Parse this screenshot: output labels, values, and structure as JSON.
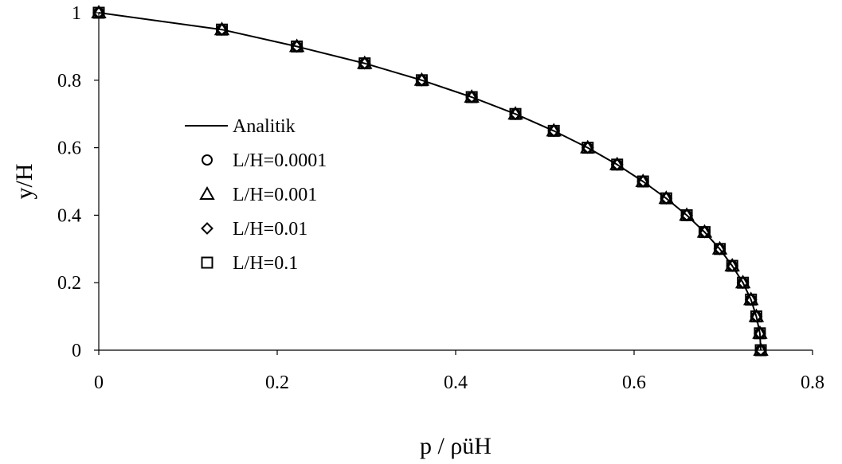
{
  "chart_data": {
    "type": "scatter",
    "xlabel": "p / ρüH",
    "ylabel": "y/H",
    "xlim": [
      0,
      0.8
    ],
    "ylim": [
      0,
      1
    ],
    "xticks": [
      "0",
      "0.2",
      "0.4",
      "0.6",
      "0.8"
    ],
    "yticks": [
      "0",
      "0.2",
      "0.4",
      "0.6",
      "0.8",
      "1"
    ],
    "grid": false,
    "legend_position": "center-left",
    "series": [
      {
        "name": "Analitik",
        "kind": "line",
        "marker": "none",
        "x": [
          0,
          0.138,
          0.222,
          0.298,
          0.362,
          0.418,
          0.467,
          0.51,
          0.548,
          0.581,
          0.61,
          0.636,
          0.659,
          0.679,
          0.696,
          0.71,
          0.722,
          0.731,
          0.737,
          0.741,
          0.742
        ],
        "y": [
          1,
          0.95,
          0.9,
          0.85,
          0.8,
          0.75,
          0.7,
          0.65,
          0.6,
          0.55,
          0.5,
          0.45,
          0.4,
          0.35,
          0.3,
          0.25,
          0.2,
          0.15,
          0.1,
          0.05,
          0
        ]
      },
      {
        "name": "L/H=0.0001",
        "kind": "scatter",
        "marker": "circle",
        "x": [
          0,
          0.138,
          0.222,
          0.298,
          0.362,
          0.418,
          0.467,
          0.51,
          0.548,
          0.581,
          0.61,
          0.636,
          0.659,
          0.679,
          0.696,
          0.71,
          0.722,
          0.731,
          0.737,
          0.741,
          0.742
        ],
        "y": [
          1,
          0.95,
          0.9,
          0.85,
          0.8,
          0.75,
          0.7,
          0.65,
          0.6,
          0.55,
          0.5,
          0.45,
          0.4,
          0.35,
          0.3,
          0.25,
          0.2,
          0.15,
          0.1,
          0.05,
          0
        ]
      },
      {
        "name": "L/H=0.001",
        "kind": "scatter",
        "marker": "triangle",
        "x": [
          0,
          0.138,
          0.222,
          0.298,
          0.362,
          0.418,
          0.467,
          0.51,
          0.548,
          0.581,
          0.61,
          0.636,
          0.659,
          0.679,
          0.696,
          0.71,
          0.722,
          0.731,
          0.737,
          0.741,
          0.742
        ],
        "y": [
          1,
          0.95,
          0.9,
          0.85,
          0.8,
          0.75,
          0.7,
          0.65,
          0.6,
          0.55,
          0.5,
          0.45,
          0.4,
          0.35,
          0.3,
          0.25,
          0.2,
          0.15,
          0.1,
          0.05,
          0
        ]
      },
      {
        "name": "L/H=0.01",
        "kind": "scatter",
        "marker": "diamond",
        "x": [
          0,
          0.138,
          0.222,
          0.298,
          0.362,
          0.418,
          0.467,
          0.51,
          0.548,
          0.581,
          0.61,
          0.636,
          0.659,
          0.679,
          0.696,
          0.71,
          0.722,
          0.731,
          0.737,
          0.741,
          0.742
        ],
        "y": [
          1,
          0.95,
          0.9,
          0.85,
          0.8,
          0.75,
          0.7,
          0.65,
          0.6,
          0.55,
          0.5,
          0.45,
          0.4,
          0.35,
          0.3,
          0.25,
          0.2,
          0.15,
          0.1,
          0.05,
          0
        ]
      },
      {
        "name": "L/H=0.1",
        "kind": "scatter",
        "marker": "square",
        "x": [
          0,
          0.138,
          0.222,
          0.298,
          0.362,
          0.418,
          0.467,
          0.51,
          0.548,
          0.581,
          0.61,
          0.636,
          0.659,
          0.679,
          0.696,
          0.71,
          0.722,
          0.731,
          0.737,
          0.741,
          0.742
        ],
        "y": [
          1,
          0.95,
          0.9,
          0.85,
          0.8,
          0.75,
          0.7,
          0.65,
          0.6,
          0.55,
          0.5,
          0.45,
          0.4,
          0.35,
          0.3,
          0.25,
          0.2,
          0.15,
          0.1,
          0.05,
          0
        ]
      }
    ]
  }
}
